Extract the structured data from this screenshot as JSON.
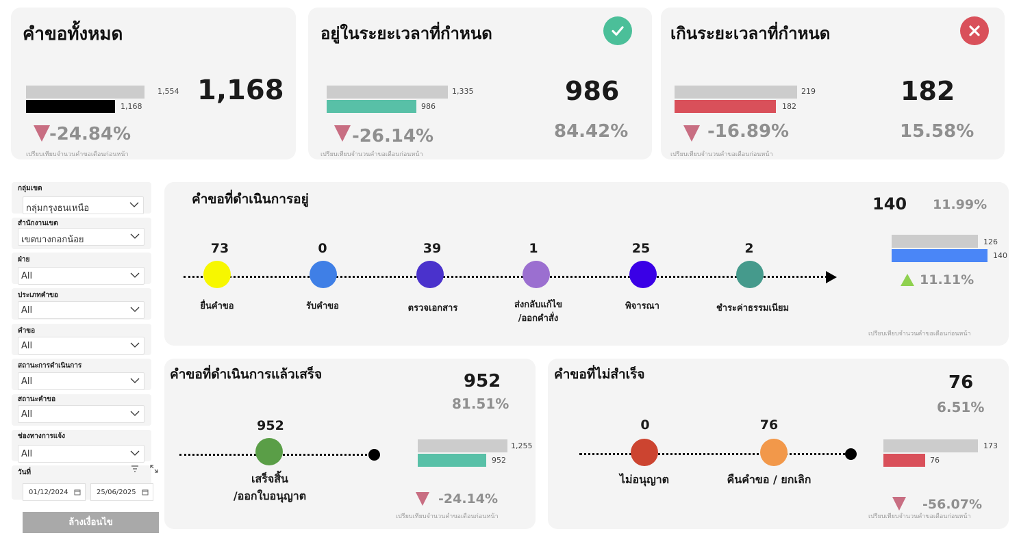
{
  "kpi_total": {
    "title": "คำขอทั้งหมด",
    "value": "1,168",
    "bar_prev_label": "1,554",
    "bar_curr_label": "1,168",
    "change": "-24.84%",
    "note": "เปรียบเทียบจำนวนคำขอเดือนก่อนหน้า"
  },
  "kpi_ontime": {
    "title": "อยู่ในระยะเวลาที่กำหนด",
    "value": "986",
    "share": "84.42%",
    "bar_prev_label": "1,335",
    "bar_curr_label": "986",
    "change": "-26.14%",
    "note": "เปรียบเทียบจำนวนคำขอเดือนก่อนหน้า",
    "icon": "check-circle-icon",
    "color": "#4bbf99"
  },
  "kpi_overdue": {
    "title": "เกินระยะเวลาที่กำหนด",
    "value": "182",
    "share": "15.58%",
    "bar_prev_label": "219",
    "bar_curr_label": "182",
    "change": "-16.89%",
    "note": "เปรียบเทียบจำนวนคำขอเดือนก่อนหน้า",
    "icon": "x-circle-icon",
    "color": "#d9505a"
  },
  "filters": [
    {
      "label": "กลุ่มเขต",
      "value": "กลุ่มกรุงธนเหนือ"
    },
    {
      "label": "สำนักงานเขต",
      "value": "เขตบางกอกน้อย"
    },
    {
      "label": "ฝ่าย",
      "value": "All"
    },
    {
      "label": "ประเภทคำขอ",
      "value": "All"
    },
    {
      "label": "คำขอ",
      "value": "All"
    },
    {
      "label": "สถานะการดำเนินการ",
      "value": "All"
    },
    {
      "label": "สถานะคำขอ",
      "value": "All"
    },
    {
      "label": "ช่องทางการแจ้ง",
      "value": "All"
    }
  ],
  "date_filter": {
    "label": "วันที่",
    "start": "01/12/2024",
    "end": "25/06/2025"
  },
  "clear_button": "ล้างเงื่อนไข",
  "in_progress": {
    "title": "คำขอที่ดำเนินการอยู่",
    "value": "140",
    "share": "11.99%",
    "bar_prev_label": "126",
    "bar_curr_label": "140",
    "change": "11.11%",
    "note": "เปรียบเทียบจำนวนคำขอเดือนก่อนหน้า",
    "stages": [
      {
        "value": "73",
        "label": "ยื่นคำขอ",
        "color": "#f7f700"
      },
      {
        "value": "0",
        "label": "รับคำขอ",
        "color": "#3f7fe6"
      },
      {
        "value": "39",
        "label": "ตรวจเอกสาร",
        "color": "#4a32cc"
      },
      {
        "value": "1",
        "label": "ส่งกลับแก้ไข\n/ออกคำสั่ง",
        "color": "#9b6fd0"
      },
      {
        "value": "25",
        "label": "พิจารณา",
        "color": "#3a00e6"
      },
      {
        "value": "2",
        "label": "ชำระค่าธรรมเนียม",
        "color": "#459a8c"
      }
    ]
  },
  "completed": {
    "title": "คำขอที่ดำเนินการแล้วเสร็จ",
    "value": "952",
    "share": "81.51%",
    "bar_prev_label": "1,255",
    "bar_curr_label": "952",
    "change": "-24.14%",
    "note": "เปรียบเทียบจำนวนคำขอเดือนก่อนหน้า",
    "stages": [
      {
        "value": "952",
        "label": "เสร็จสิ้น\n/ออกใบอนุญาต",
        "color": "#5a9e47"
      }
    ]
  },
  "failed": {
    "title": "คำขอที่ไม่สำเร็จ",
    "value": "76",
    "share": "6.51%",
    "bar_prev_label": "173",
    "bar_curr_label": "76",
    "change": "-56.07%",
    "note": "เปรียบเทียบจำนวนคำขอเดือนก่อนหน้า",
    "stages": [
      {
        "value": "0",
        "label": "ไม่อนุญาต",
        "color": "#cc4430"
      },
      {
        "value": "76",
        "label": "คืนคำขอ / ยกเลิก",
        "color": "#f2984a"
      }
    ]
  }
}
